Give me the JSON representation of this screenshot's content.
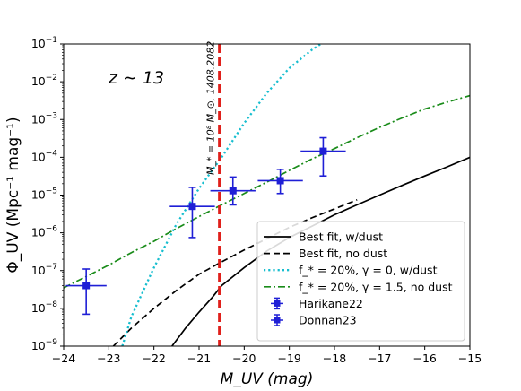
{
  "chart_data": {
    "type": "line",
    "xlabel": "M_UV (mag)",
    "ylabel": "Φ_UV (Mpc⁻¹ mag⁻¹)",
    "xlim": [
      -24,
      -15
    ],
    "ylim_log10": [
      -9,
      -1
    ],
    "yscale": "log",
    "grid": false,
    "legend_position": "lower-right",
    "x_ticks": [
      "−24",
      "−23",
      "−22",
      "−21",
      "−20",
      "−19",
      "−18",
      "−17",
      "−16",
      "−15"
    ],
    "x_tick_values": [
      -24,
      -23,
      -22,
      -21,
      -20,
      -19,
      -18,
      -17,
      -16,
      -15
    ],
    "y_tick_exponents": [
      "−9",
      "−8",
      "−7",
      "−6",
      "−5",
      "−4",
      "−3",
      "−2",
      "−1"
    ],
    "y_tick_values_log10": [
      -9,
      -8,
      -7,
      -6,
      -5,
      -4,
      -3,
      -2,
      -1
    ],
    "annotations": {
      "redshift": "z ∼ 13",
      "vline_label": "M_* = 10⁸ M_⊙, 1408.2082",
      "vline_x": -20.55
    },
    "series": [
      {
        "name": "Best fit, w/dust",
        "style": "solid",
        "color": "#000000",
        "x": [
          -21.6,
          -21.3,
          -21.0,
          -20.7,
          -20.5,
          -20.0,
          -19.5,
          -19.0,
          -18.5,
          -18.0,
          -17.5,
          -17.0,
          -16.5,
          -16.0,
          -15.5,
          -15.0
        ],
        "y": [
          1e-09,
          3e-09,
          8e-09,
          2e-08,
          4e-08,
          1.2e-07,
          3.3e-07,
          7.5e-07,
          1.5e-06,
          3e-06,
          5.5e-06,
          1e-05,
          1.8e-05,
          3.2e-05,
          5.6e-05,
          0.0001
        ]
      },
      {
        "name": "Best fit, no dust",
        "style": "dashed",
        "color": "#000000",
        "x": [
          -22.9,
          -22.5,
          -22.0,
          -21.5,
          -21.0,
          -20.5,
          -20.0,
          -19.5,
          -19.0,
          -18.5,
          -18.0,
          -17.5
        ],
        "y": [
          1e-09,
          3e-09,
          1e-08,
          3e-08,
          8e-08,
          1.7e-07,
          3.5e-07,
          7e-07,
          1.4e-06,
          2.5e-06,
          4.3e-06,
          7.5e-06
        ]
      },
      {
        "name": "f_* = 20%, γ = 0, w/dust",
        "style": "dotted",
        "color": "#17becf",
        "x": [
          -22.7,
          -22.5,
          -22.0,
          -21.5,
          -21.0,
          -20.5,
          -20.0,
          -19.5,
          -19.0,
          -18.5,
          -18.3
        ],
        "y": [
          1e-09,
          6e-09,
          1.2e-07,
          1.7e-06,
          1.5e-05,
          0.0001,
          0.0008,
          0.005,
          0.023,
          0.07,
          0.1
        ]
      },
      {
        "name": "f_* = 20%, γ = 1.5, no dust",
        "style": "dashdot",
        "color": "#1a8c1a",
        "x": [
          -24.0,
          -23.5,
          -23.0,
          -22.5,
          -22.0,
          -21.5,
          -21.0,
          -20.5,
          -20.0,
          -19.5,
          -19.0,
          -18.5,
          -18.0,
          -17.5,
          -17.0,
          -16.5,
          -16.0,
          -15.5,
          -15.0
        ],
        "y": [
          3.5e-08,
          7e-08,
          1.4e-07,
          3e-07,
          6e-07,
          1.3e-06,
          2.7e-06,
          5.5e-06,
          1.1e-05,
          2.2e-05,
          4.5e-05,
          9e-05,
          0.00017,
          0.00033,
          0.00062,
          0.0011,
          0.0019,
          0.0029,
          0.0043
        ]
      }
    ],
    "errorbar_series": [
      {
        "name": "Harikane22",
        "color": "#1f1fd6",
        "marker": "square",
        "points": []
      },
      {
        "name": "Donnan23",
        "color": "#1f1fd6",
        "marker": "square",
        "points": [
          {
            "x": -23.5,
            "xerr": 0.45,
            "y": 4e-08,
            "ylo": 7e-09,
            "yhi": 1.1e-07
          },
          {
            "x": -21.15,
            "xerr": 0.5,
            "y": 5e-06,
            "ylo": 7.5e-07,
            "yhi": 1.6e-05
          },
          {
            "x": -20.25,
            "xerr": 0.5,
            "y": 1.3e-05,
            "ylo": 5.5e-06,
            "yhi": 3e-05
          },
          {
            "x": -19.2,
            "xerr": 0.5,
            "y": 2.4e-05,
            "ylo": 1.1e-05,
            "yhi": 4.8e-05
          },
          {
            "x": -18.25,
            "xerr": 0.5,
            "y": 0.000145,
            "ylo": 3.2e-05,
            "yhi": 0.00033
          }
        ]
      }
    ]
  }
}
